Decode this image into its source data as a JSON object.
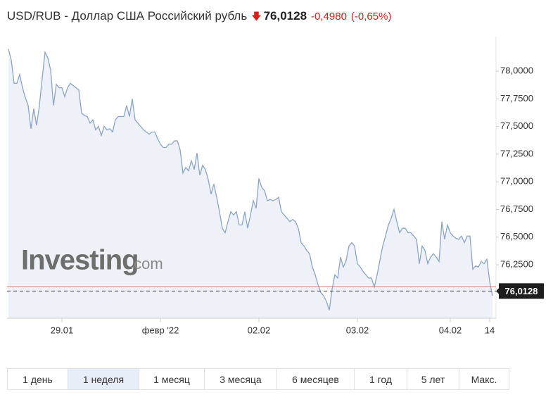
{
  "header": {
    "title": "USD/RUB - Доллар США Российский рубль",
    "price": "76,0128",
    "change": "-0,4980",
    "change_pct": "(-0,65%)"
  },
  "watermark": {
    "brand": "Investing",
    "suffix": ".com"
  },
  "periods": [
    "1 день",
    "1 неделя",
    "1 месяц",
    "3 месяца",
    "6 месяцев",
    "1 год",
    "5 лет",
    "Макс."
  ],
  "selected_period": 1,
  "chart_data": {
    "type": "area",
    "color": "#8aa4cc",
    "fill": "#eef1f7",
    "x": [
      0,
      1,
      2,
      3,
      4,
      5,
      6,
      7,
      8,
      9,
      10,
      11,
      12,
      13,
      14,
      15,
      16,
      17,
      18,
      19,
      20,
      21,
      22,
      23,
      24,
      25,
      26,
      27,
      28,
      29,
      30,
      31,
      32,
      33,
      34,
      35,
      36,
      37,
      38,
      39,
      40,
      41,
      42,
      43,
      44,
      45,
      46,
      47,
      48,
      49,
      50,
      51,
      52,
      53,
      54,
      55,
      56,
      57,
      58,
      59,
      60,
      61,
      62,
      63,
      64,
      65,
      66,
      67,
      68,
      69,
      70,
      71,
      72,
      73,
      74,
      75,
      76,
      77,
      78,
      79,
      80,
      81,
      82,
      83,
      84,
      85,
      86,
      87,
      88,
      89,
      90,
      91,
      92,
      93,
      94,
      95,
      96,
      97,
      98,
      99,
      100,
      101,
      102,
      103,
      104,
      105,
      106,
      107,
      108,
      109,
      110,
      111,
      112,
      113,
      114,
      115,
      116,
      117,
      118,
      119,
      120,
      121,
      122,
      123,
      124,
      125,
      126,
      127,
      128,
      129,
      130,
      131,
      132,
      133,
      134,
      135,
      136,
      137,
      138,
      139,
      140,
      141,
      142,
      143,
      144,
      145,
      146,
      147,
      148,
      149,
      150,
      151,
      152,
      153,
      154,
      155,
      156,
      157,
      158,
      159,
      160,
      161,
      162,
      163,
      164,
      165,
      166,
      167,
      168,
      169,
      170,
      171,
      172
    ],
    "values": [
      78.2,
      78.1,
      77.89,
      77.89,
      77.97,
      77.85,
      77.76,
      77.69,
      77.48,
      77.66,
      77.51,
      77.69,
      77.94,
      78.17,
      78.12,
      78.01,
      77.69,
      77.88,
      77.85,
      77.85,
      77.77,
      77.85,
      77.89,
      77.87,
      77.85,
      77.83,
      77.62,
      77.6,
      77.59,
      77.53,
      77.56,
      77.47,
      77.5,
      77.42,
      77.5,
      77.47,
      77.48,
      77.45,
      77.56,
      77.59,
      77.59,
      77.59,
      77.69,
      77.59,
      77.75,
      77.56,
      77.53,
      77.5,
      77.47,
      77.45,
      77.43,
      77.45,
      77.45,
      77.39,
      77.34,
      77.31,
      77.31,
      77.34,
      77.34,
      77.37,
      77.37,
      77.29,
      77.08,
      77.13,
      77.1,
      77.19,
      77.11,
      77.26,
      77.06,
      77.15,
      77.11,
      77.02,
      76.89,
      76.98,
      76.86,
      76.73,
      76.58,
      76.54,
      76.64,
      76.73,
      76.7,
      76.73,
      76.61,
      76.61,
      76.73,
      76.58,
      76.7,
      76.83,
      76.76,
      77.03,
      76.95,
      76.92,
      76.83,
      76.84,
      76.83,
      76.84,
      76.86,
      76.73,
      76.7,
      76.67,
      76.64,
      76.66,
      76.64,
      76.58,
      76.45,
      76.42,
      76.38,
      76.35,
      76.23,
      76.16,
      76.07,
      76,
      75.97,
      75.92,
      75.84,
      76.03,
      76.16,
      76.13,
      76.32,
      76.23,
      76.29,
      76.42,
      76.45,
      76.42,
      76.26,
      76.23,
      76.19,
      76.16,
      76.13,
      76.13,
      76.05,
      76.16,
      76.29,
      76.42,
      76.51,
      76.61,
      76.67,
      76.75,
      76.64,
      76.54,
      76.58,
      76.58,
      76.54,
      76.54,
      76.51,
      76.48,
      76.26,
      76.42,
      76.38,
      76.26,
      76.32,
      76.35,
      76.32,
      76.28,
      76.64,
      76.48,
      76.61,
      76.54,
      76.51,
      76.49,
      76.48,
      76.51,
      76.45,
      76.51,
      76.51,
      76.21,
      76.24,
      76.23,
      76.28,
      76.26,
      76.3,
      76.1,
      75.97
    ],
    "xlim": [
      -0.5,
      173.25
    ],
    "xticks": [
      {
        "value": 19,
        "label": "29.01"
      },
      {
        "value": 54,
        "label": "февр '22"
      },
      {
        "value": 89,
        "label": "02.02"
      },
      {
        "value": 124,
        "label": "03.02"
      },
      {
        "value": 157,
        "label": "04.02"
      },
      {
        "value": 171,
        "label": "14"
      }
    ],
    "ylim": [
      75.767,
      78.261
    ],
    "yticks": [
      {
        "value": 76.25,
        "label": "76,2500"
      },
      {
        "value": 76.5,
        "label": "76,5000"
      },
      {
        "value": 76.75,
        "label": "76,7500"
      },
      {
        "value": 77,
        "label": "77,0000"
      },
      {
        "value": 77.25,
        "label": "77,2500"
      },
      {
        "value": 77.5,
        "label": "77,5000"
      },
      {
        "value": 77.75,
        "label": "77,7500"
      },
      {
        "value": 78,
        "label": "78,0000"
      }
    ],
    "last_price": {
      "value": 76.0128,
      "label": "76,0128"
    },
    "previous_close": 76.053,
    "previous_close_color": "#e07a7a"
  }
}
